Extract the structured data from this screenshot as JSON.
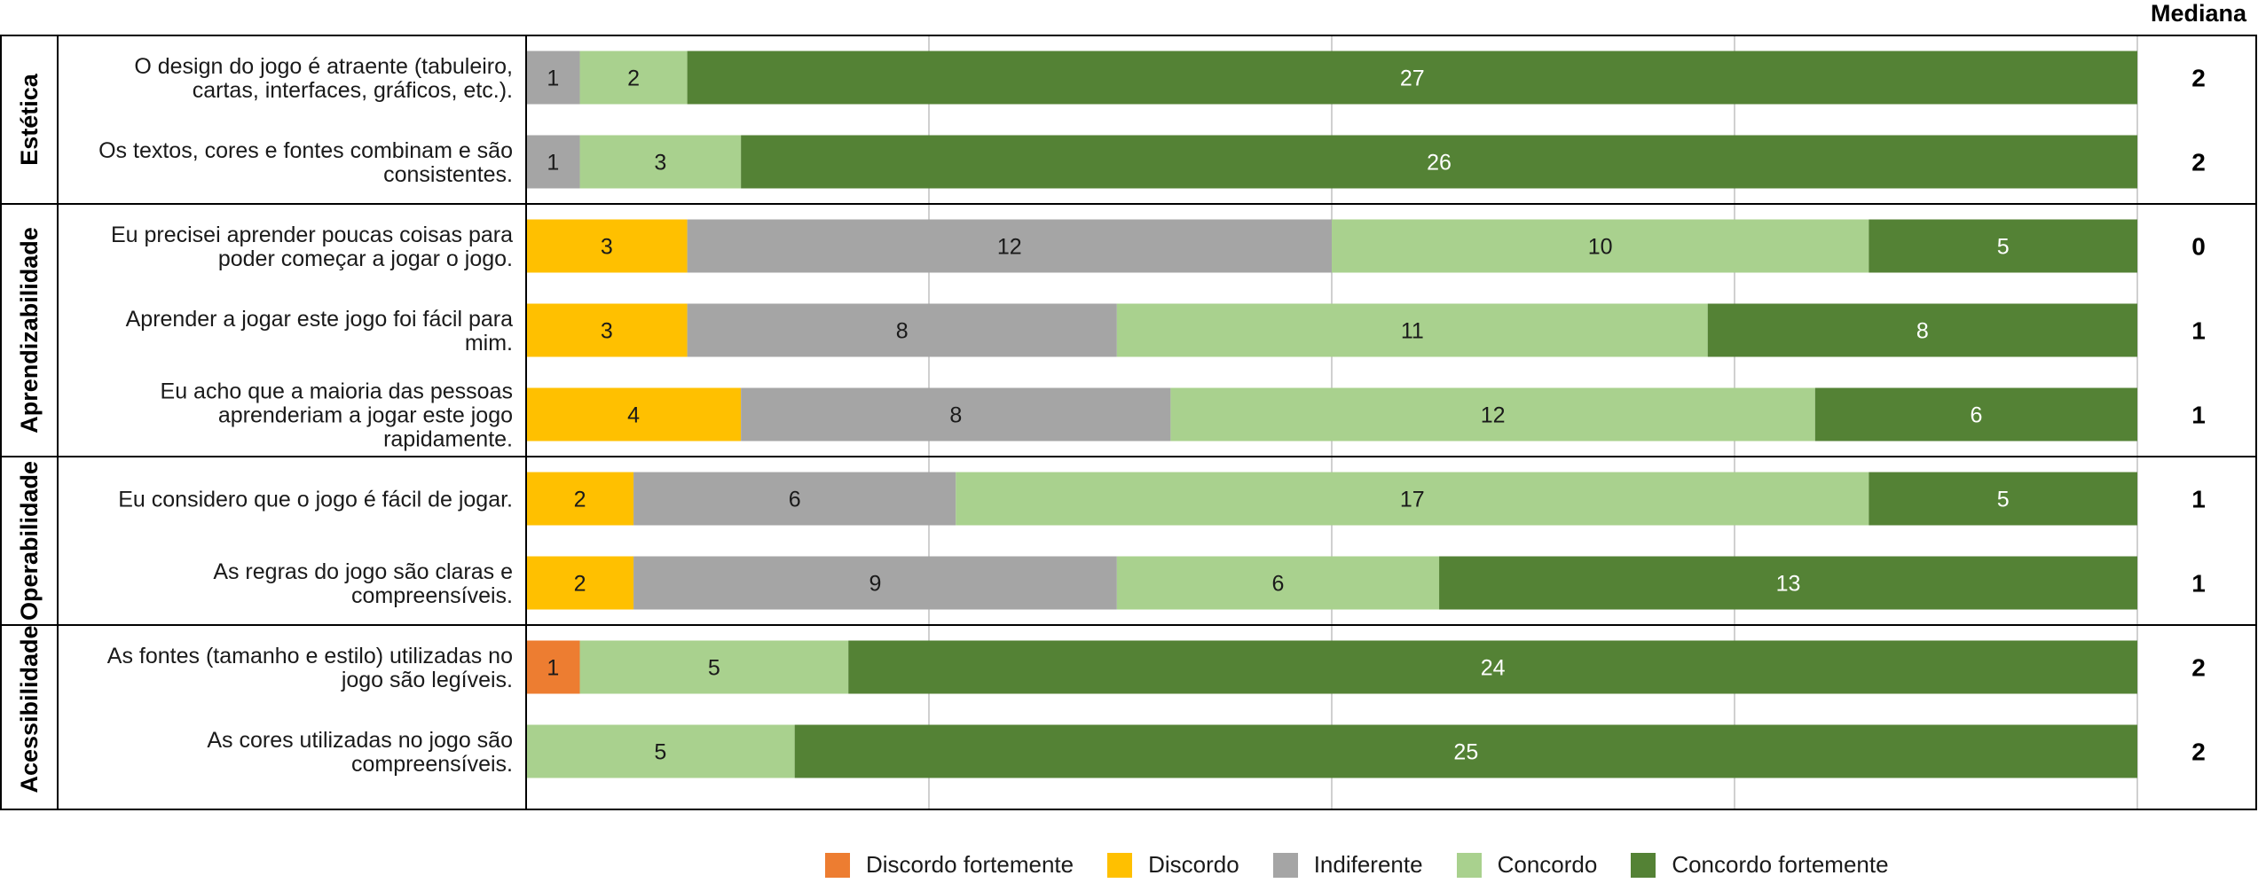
{
  "chart_data": {
    "type": "bar",
    "stacked": "horizontal",
    "median_header": "Mediana",
    "categories_order": [
      "Discordo fortemente",
      "Discordo",
      "Indiferente",
      "Concordo",
      "Concordo fortemente"
    ],
    "colors": [
      "#ed7d31",
      "#ffc000",
      "#a5a5a5",
      "#a9d18e",
      "#548235"
    ],
    "label_colors": [
      "#1a1a1a",
      "#1a1a1a",
      "#1a1a1a",
      "#1a1a1a",
      "#ffffff"
    ],
    "xlim": [
      0,
      30
    ],
    "grid": true,
    "legend_position": "bottom",
    "groups": [
      {
        "name": "Estética",
        "rows": [
          {
            "label_lines": [
              "O design do jogo é atraente (tabuleiro,",
              "cartas, interfaces, gráficos, etc.)."
            ],
            "values": [
              0,
              0,
              1,
              2,
              27
            ],
            "median": "2"
          },
          {
            "label_lines": [
              "Os textos, cores e fontes combinam e são",
              "consistentes."
            ],
            "values": [
              0,
              0,
              1,
              3,
              26
            ],
            "median": "2"
          }
        ]
      },
      {
        "name": "Aprendizabilidade",
        "rows": [
          {
            "label_lines": [
              "Eu precisei aprender poucas coisas para",
              "poder começar a jogar o jogo."
            ],
            "values": [
              0,
              3,
              12,
              10,
              5
            ],
            "median": "0"
          },
          {
            "label_lines": [
              "Aprender a jogar este jogo foi fácil para",
              "mim."
            ],
            "values": [
              0,
              3,
              8,
              11,
              8
            ],
            "median": "1"
          },
          {
            "label_lines": [
              "Eu acho que a maioria das pessoas",
              "aprenderiam a jogar este jogo",
              "rapidamente."
            ],
            "values": [
              0,
              4,
              8,
              12,
              6
            ],
            "median": "1"
          }
        ]
      },
      {
        "name": "Operabilidade",
        "rows": [
          {
            "label_lines": [
              "Eu considero que o jogo é fácil de jogar."
            ],
            "values": [
              0,
              2,
              6,
              17,
              5
            ],
            "median": "1"
          },
          {
            "label_lines": [
              "As regras do jogo são claras e",
              "compreensíveis."
            ],
            "values": [
              0,
              2,
              9,
              6,
              13
            ],
            "median": "1"
          }
        ]
      },
      {
        "name": "Acessibilidade",
        "rows": [
          {
            "label_lines": [
              "As fontes (tamanho e estilo) utilizadas no",
              "jogo são legíveis."
            ],
            "values": [
              1,
              0,
              0,
              5,
              24
            ],
            "median": "2"
          },
          {
            "label_lines": [
              "As cores utilizadas no jogo são",
              "compreensíveis."
            ],
            "values": [
              0,
              0,
              0,
              5,
              25
            ],
            "median": "2"
          }
        ]
      }
    ],
    "legend": [
      "Discordo fortemente",
      "Discordo",
      "Indiferente",
      "Concordo",
      "Concordo fortemente"
    ]
  }
}
